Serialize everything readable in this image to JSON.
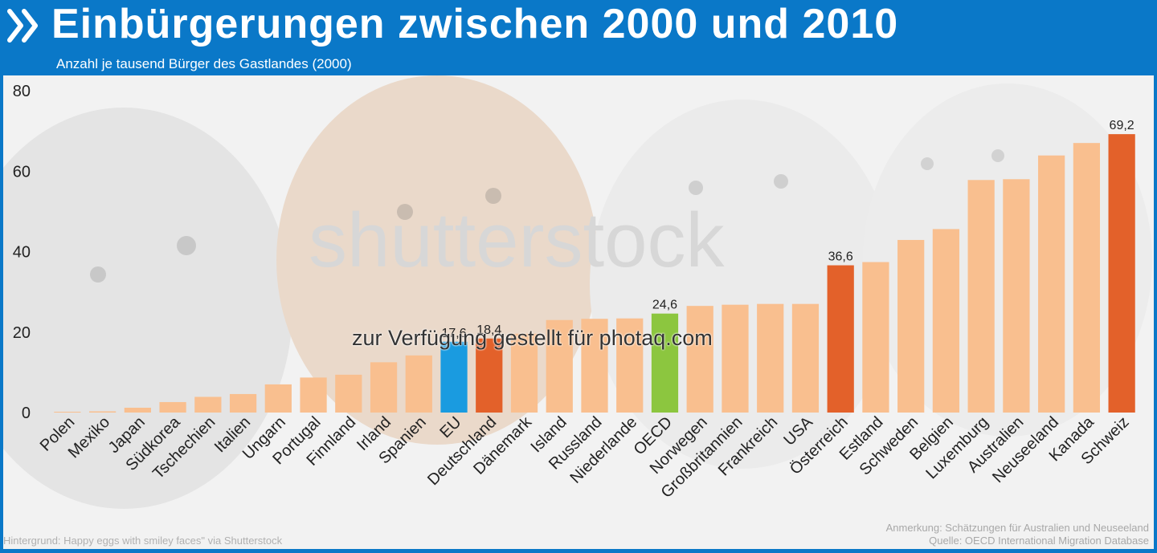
{
  "header": {
    "title": "Einbürgerungen zwischen 2000 und 2010",
    "subtitle": "Anzahl je tausend Bürger des Gastlandes (2000)"
  },
  "footer": {
    "background_credit": "Hintergrund: Happy eggs with smiley faces\" via Shutterstock",
    "note": "Anmerkung: Schätzungen für Australien und Neuseeland",
    "source": "Quelle: OECD International Migration Database"
  },
  "watermark": {
    "text": "zur Verfügung gestellt für photaq.com",
    "stock_text": "shutterstock"
  },
  "colors": {
    "brand_blue": "#0a78c8",
    "bar_default": "#f9bf8f",
    "bar_highlight": "#e3612a",
    "bar_eu": "#1a9be0",
    "bar_oecd": "#8cc63f"
  },
  "chart_data": {
    "type": "bar",
    "ylim": [
      0,
      80
    ],
    "yticks": [
      "0",
      "20",
      "40",
      "60",
      "80"
    ],
    "grid": false,
    "categories": [
      "Polen",
      "Mexiko",
      "Japan",
      "Südkorea",
      "Tschechien",
      "Italien",
      "Ungarn",
      "Portugal",
      "Finnland",
      "Irland",
      "Spanien",
      "EU",
      "Deutschland",
      "Dänemark",
      "Island",
      "Russland",
      "Niederlande",
      "OECD",
      "Norwegen",
      "Großbritannien",
      "Frankreich",
      "USA",
      "Österreich",
      "Estland",
      "Schweden",
      "Belgien",
      "Luxemburg",
      "Australien",
      "Neuseeland",
      "Kanada",
      "Schweiz"
    ],
    "values": [
      0.2,
      0.3,
      1.2,
      2.6,
      3.9,
      4.6,
      7.0,
      8.7,
      9.4,
      12.5,
      14.2,
      17.6,
      18.4,
      19.6,
      23.0,
      23.3,
      23.4,
      24.6,
      26.5,
      26.8,
      27.0,
      27.0,
      36.6,
      37.4,
      42.9,
      45.6,
      57.8,
      58.0,
      63.9,
      67.0,
      69.2
    ],
    "data_labels": [
      null,
      null,
      null,
      null,
      null,
      null,
      null,
      null,
      null,
      null,
      null,
      "17,6",
      "18,4",
      null,
      null,
      null,
      null,
      "24,6",
      null,
      null,
      null,
      null,
      "36,6",
      null,
      null,
      null,
      null,
      null,
      null,
      null,
      "69,2"
    ],
    "bar_color_keys": [
      "bar_default",
      "bar_default",
      "bar_default",
      "bar_default",
      "bar_default",
      "bar_default",
      "bar_default",
      "bar_default",
      "bar_default",
      "bar_default",
      "bar_default",
      "bar_eu",
      "bar_highlight",
      "bar_default",
      "bar_default",
      "bar_default",
      "bar_default",
      "bar_oecd",
      "bar_default",
      "bar_default",
      "bar_default",
      "bar_default",
      "bar_highlight",
      "bar_default",
      "bar_default",
      "bar_default",
      "bar_default",
      "bar_default",
      "bar_default",
      "bar_default",
      "bar_highlight"
    ]
  }
}
